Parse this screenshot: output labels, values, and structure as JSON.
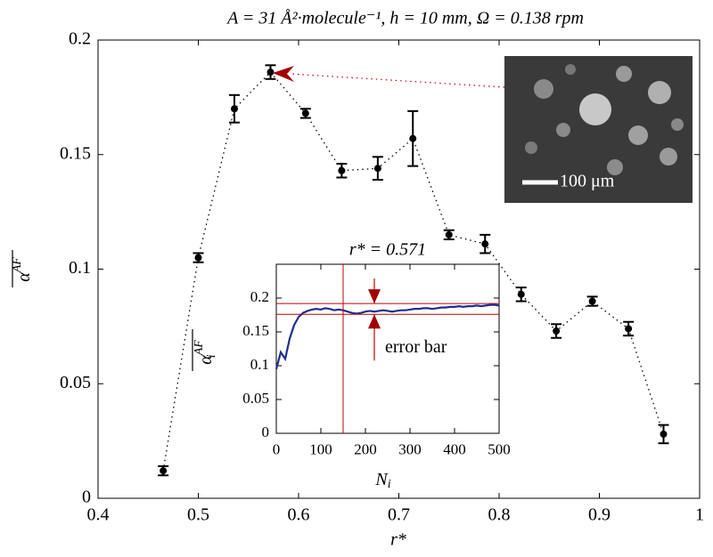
{
  "chart_data": [
    {
      "type": "errorbar",
      "title": "A = 31 Å²·molecule⁻¹, h = 10 mm, Ω = 0.138 rpm",
      "x_label": "r*",
      "y_label": {
        "symbol": "α",
        "superscript": "AF"
      },
      "x": [
        0.465,
        0.5,
        0.536,
        0.572,
        0.607,
        0.643,
        0.679,
        0.714,
        0.75,
        0.786,
        0.822,
        0.857,
        0.893,
        0.929,
        0.964
      ],
      "values": [
        0.012,
        0.105,
        0.17,
        0.186,
        0.168,
        0.143,
        0.144,
        0.157,
        0.115,
        0.111,
        0.089,
        0.073,
        0.086,
        0.074,
        0.028
      ],
      "errors": [
        0.002,
        0.002,
        0.006,
        0.003,
        0.002,
        0.003,
        0.005,
        0.012,
        0.002,
        0.004,
        0.003,
        0.003,
        0.002,
        0.003,
        0.004
      ],
      "color": "#000000",
      "xlim": [
        0.4,
        1
      ],
      "ylim": [
        0,
        0.2
      ],
      "xticks": [
        0.4,
        0.5,
        0.6,
        0.7,
        0.8,
        0.9,
        1
      ],
      "yticks": [
        0,
        0.05,
        0.1,
        0.15,
        0.2
      ],
      "image_scale_label": "100 μm"
    },
    {
      "type": "line",
      "title": "r* = 0.571",
      "x_label": {
        "symbol": "N",
        "subscript": "i"
      },
      "y_label": {
        "symbol": "α",
        "subscript": "i",
        "superscript": "AF"
      },
      "x": [
        0,
        10,
        20,
        30,
        40,
        50,
        60,
        70,
        80,
        90,
        100,
        110,
        120,
        130,
        140,
        150,
        160,
        170,
        180,
        190,
        200,
        210,
        220,
        230,
        240,
        250,
        260,
        270,
        280,
        290,
        300,
        310,
        320,
        330,
        340,
        350,
        360,
        370,
        380,
        390,
        400,
        410,
        420,
        430,
        440,
        450,
        460,
        470,
        480,
        490,
        500
      ],
      "values": [
        0.095,
        0.12,
        0.11,
        0.14,
        0.16,
        0.172,
        0.178,
        0.181,
        0.183,
        0.184,
        0.183,
        0.185,
        0.184,
        0.182,
        0.183,
        0.182,
        0.18,
        0.178,
        0.177,
        0.178,
        0.18,
        0.181,
        0.18,
        0.181,
        0.182,
        0.181,
        0.18,
        0.181,
        0.182,
        0.182,
        0.183,
        0.184,
        0.184,
        0.185,
        0.185,
        0.184,
        0.185,
        0.186,
        0.186,
        0.187,
        0.187,
        0.188,
        0.187,
        0.188,
        0.188,
        0.189,
        0.188,
        0.189,
        0.19,
        0.19,
        0.189
      ],
      "color": "#1f2f8f",
      "reference_color": "#c00000",
      "hlines": [
        0.192,
        0.176
      ],
      "vline": 150,
      "annotation": "error bar",
      "annotation_x": 220,
      "xlim": [
        0,
        500
      ],
      "ylim": [
        0,
        0.25
      ],
      "xticks": [
        0,
        100,
        200,
        300,
        400,
        500
      ],
      "yticks": [
        0,
        0.05,
        0.1,
        0.15,
        0.2
      ]
    }
  ]
}
